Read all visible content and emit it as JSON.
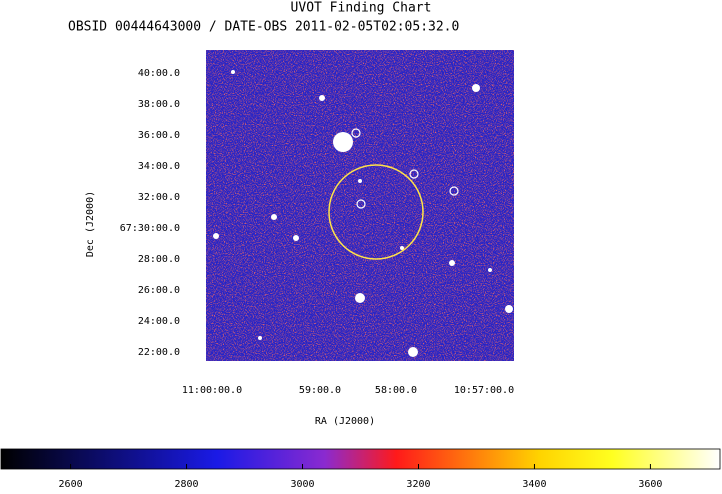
{
  "header": {
    "title": "UVOT Finding Chart",
    "subtitle": "OBSID 00444643000 / DATE-OBS 2011-02-05T02:05:32.0"
  },
  "image": {
    "x_label": "RA (J2000)",
    "y_label": "Dec (J2000)",
    "x_ticks": [
      "11:00:00.0",
      "59:00.0",
      "58:00.0",
      "10:57:00.0"
    ],
    "y_ticks": [
      "40:00.0",
      "38:00.0",
      "36:00.0",
      "34:00.0",
      "32:00.0",
      "67:30:00.0",
      "28:00.0",
      "26:00.0",
      "24:00.0",
      "22:00.0"
    ]
  },
  "colorbar": {
    "range": [
      2480,
      3720
    ],
    "ticks": [
      2600,
      2800,
      3000,
      3200,
      3400,
      3600
    ]
  }
}
